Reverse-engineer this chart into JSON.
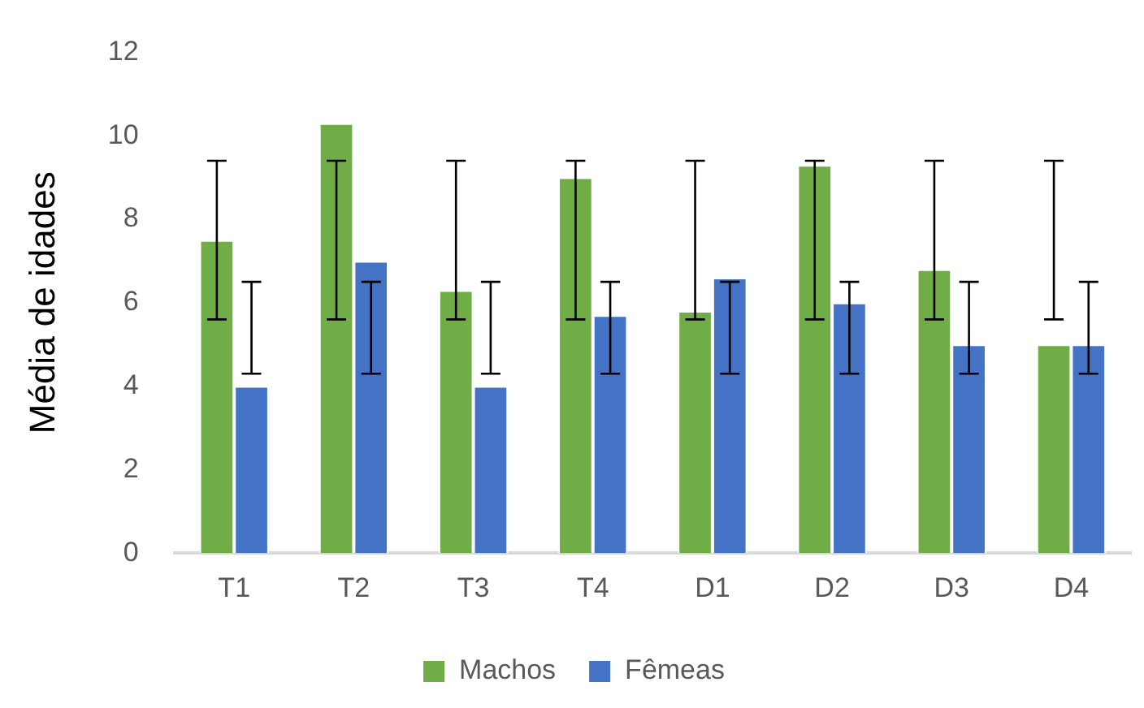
{
  "chart_data": {
    "type": "bar",
    "ylabel": "Média de idades",
    "categories": [
      "T1",
      "T2",
      "T3",
      "T4",
      "D1",
      "D2",
      "D3",
      "D4"
    ],
    "series": [
      {
        "name": "Machos",
        "color": "#70ad47",
        "values": [
          7.5,
          10.3,
          6.3,
          9.0,
          5.8,
          9.3,
          6.8,
          5.0
        ],
        "errors": [
          [
            5.6,
            9.4
          ],
          [
            5.6,
            9.4
          ],
          [
            5.6,
            9.4
          ],
          [
            5.6,
            9.4
          ],
          [
            5.6,
            9.4
          ],
          [
            5.6,
            9.4
          ],
          [
            5.6,
            9.4
          ],
          [
            5.6,
            9.4
          ]
        ]
      },
      {
        "name": "Fêmeas",
        "color": "#4472c4",
        "values": [
          4.0,
          7.0,
          4.0,
          5.7,
          6.6,
          6.0,
          5.0,
          5.0
        ],
        "errors": [
          [
            4.3,
            6.5
          ],
          [
            4.3,
            6.5
          ],
          [
            4.3,
            6.5
          ],
          [
            4.3,
            6.5
          ],
          [
            4.3,
            6.5
          ],
          [
            4.3,
            6.5
          ],
          [
            4.3,
            6.5
          ],
          [
            4.3,
            6.5
          ]
        ]
      }
    ],
    "ylim": [
      0,
      12
    ],
    "yticks": [
      0,
      2,
      4,
      6,
      8,
      10,
      12
    ],
    "grid": false,
    "legend": "bottom"
  }
}
